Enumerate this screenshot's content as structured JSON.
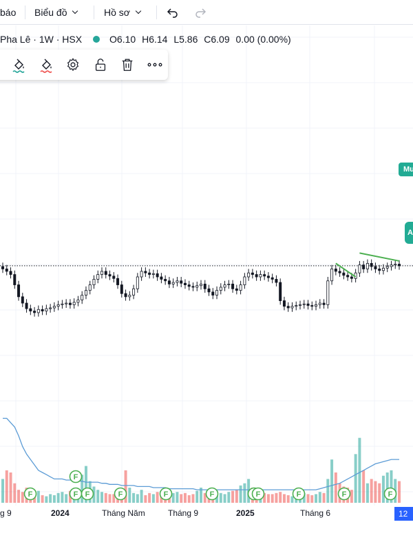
{
  "topbar": {
    "partial_left_label": "báo",
    "menu_chart": "Biểu đồ",
    "menu_profile": "Hồ sơ",
    "undo_icon": "undo-icon",
    "redo_icon": "redo-icon"
  },
  "legend": {
    "symbol": "Pha Lê · 1W · HSX",
    "status_color": "#26a69a",
    "open": "O6.10",
    "high": "H6.14",
    "low": "L5.86",
    "close": "C6.09",
    "change": "0.00 (0.00%)"
  },
  "drawing_toolbar": {
    "icons": [
      "line-color-icon",
      "fill-color-icon",
      "settings-icon",
      "unlock-icon",
      "trash-icon",
      "more-icon"
    ],
    "line_color_underline": "#26a69a",
    "fill_color_underline": "#ef5350"
  },
  "price_tags": {
    "buy_label": "Mu",
    "last_price_label": "A",
    "color": "#22ab94"
  },
  "chart_data": {
    "type": "candlestick",
    "title": "",
    "colors": {
      "up": "#26a69a",
      "down": "#ef5350",
      "candle": "#131722",
      "volume_ma": "#5b9bd5",
      "trendline": "#4caf50"
    },
    "candles_close": [
      6.05,
      6.02,
      5.98,
      5.85,
      5.7,
      5.62,
      5.55,
      5.52,
      5.5,
      5.54,
      5.52,
      5.55,
      5.56,
      5.58,
      5.6,
      5.61,
      5.62,
      5.6,
      5.63,
      5.66,
      5.72,
      5.78,
      5.85,
      5.92,
      5.98,
      6.02,
      5.98,
      5.96,
      5.93,
      5.85,
      5.74,
      5.7,
      5.72,
      5.8,
      5.95,
      6.02,
      6.0,
      5.98,
      5.99,
      5.95,
      5.92,
      5.9,
      5.86,
      5.88,
      5.9,
      5.87,
      5.85,
      5.83,
      5.82,
      5.84,
      5.86,
      5.8,
      5.76,
      5.72,
      5.78,
      5.82,
      5.85,
      5.86,
      5.8,
      5.78,
      5.85,
      5.95,
      6.0,
      5.98,
      5.95,
      5.98,
      5.96,
      5.94,
      5.92,
      5.88,
      5.65,
      5.58,
      5.56,
      5.58,
      5.59,
      5.6,
      5.61,
      5.59,
      5.58,
      5.6,
      5.62,
      5.6,
      5.9,
      6.05,
      6.02,
      6.0,
      5.97,
      5.95,
      5.93,
      6.0,
      6.1,
      6.05,
      6.12,
      6.08,
      6.05,
      6.03,
      6.06,
      6.08,
      6.1,
      6.11,
      6.09
    ],
    "volume": [
      22,
      30,
      28,
      18,
      12,
      10,
      14,
      8,
      9,
      11,
      7,
      6,
      8,
      7,
      9,
      10,
      8,
      11,
      9,
      12,
      26,
      34,
      20,
      15,
      12,
      10,
      9,
      8,
      8,
      7,
      10,
      30,
      14,
      9,
      8,
      12,
      7,
      9,
      8,
      10,
      11,
      9,
      8,
      9,
      10,
      8,
      9,
      7,
      8,
      11,
      14,
      9,
      8,
      10,
      7,
      9,
      8,
      10,
      11,
      12,
      16,
      18,
      22,
      14,
      12,
      10,
      9,
      8,
      8,
      9,
      10,
      8,
      7,
      6,
      8,
      7,
      9,
      8,
      7,
      8,
      10,
      9,
      22,
      40,
      28,
      18,
      15,
      14,
      12,
      45,
      60,
      30,
      18,
      22,
      20,
      18,
      25,
      28,
      30,
      22,
      20
    ],
    "volume_ma": [
      78,
      78,
      74,
      70,
      62,
      52,
      45,
      40,
      35,
      30,
      28,
      26,
      24,
      22,
      22,
      22,
      21,
      21,
      20,
      20,
      20,
      19,
      19,
      19,
      19,
      18,
      18,
      17,
      17,
      17,
      16,
      16,
      16,
      16,
      15,
      15,
      15,
      15,
      14,
      14,
      14,
      14,
      13,
      13,
      13,
      13,
      13,
      13,
      13,
      12,
      12,
      12,
      12,
      12,
      12,
      12,
      12,
      12,
      12,
      12,
      12,
      12,
      12,
      12,
      12,
      12,
      12,
      12,
      12,
      12,
      12,
      12,
      12,
      12,
      12,
      12,
      12,
      12,
      12,
      12,
      13,
      14,
      15,
      16,
      17,
      18,
      20,
      22,
      24,
      26,
      28,
      30,
      32,
      34,
      36,
      37,
      38,
      39,
      40,
      40,
      40
    ],
    "financial_event_markers": [
      "F",
      "F",
      "F",
      "F",
      "F",
      "F",
      "F",
      "F",
      "F",
      "F",
      "F",
      "F",
      "F",
      "F"
    ],
    "x_tick_labels": [
      "g 9",
      "2024",
      "Tháng Năm",
      "Tháng 9",
      "2025",
      "Tháng 6"
    ],
    "current_time_tag": "12"
  }
}
